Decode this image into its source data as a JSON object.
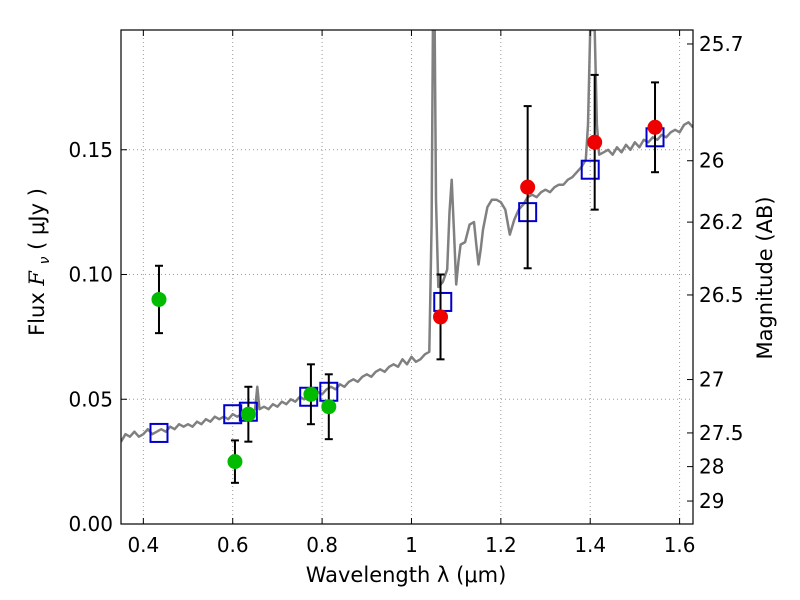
{
  "chart_data": {
    "type": "scatter",
    "xlabel": "Wavelength  λ (μm)",
    "ylabel": "Flux  F_ν  ( μJy )",
    "ylabel_parts": {
      "lead": "Flux  ",
      "symbol": "F",
      "sub": "ν",
      "unit": "  ( μJy )"
    },
    "y2label": "Magnitude (AB)",
    "xlim": [
      0.35,
      1.63
    ],
    "ylim": [
      0.0,
      0.198
    ],
    "grid": true,
    "x_ticks": [
      0.4,
      0.6,
      0.8,
      1.0,
      1.2,
      1.4,
      1.6
    ],
    "x_tick_labels": [
      "0.4",
      "0.6",
      "0.8",
      "1",
      "1.2",
      "1.4",
      "1.6"
    ],
    "y_ticks": [
      0.0,
      0.05,
      0.1,
      0.15
    ],
    "y_tick_labels": [
      "0.00",
      "0.05",
      "0.10",
      "0.15"
    ],
    "y2_ticks": [
      {
        "label": "25.7",
        "flux": 0.1924
      },
      {
        "label": "26",
        "flux": 0.1456
      },
      {
        "label": "26.2",
        "flux": 0.121
      },
      {
        "label": "26.5",
        "flux": 0.0918
      },
      {
        "label": "27",
        "flux": 0.0579
      },
      {
        "label": "27.5",
        "flux": 0.0365
      },
      {
        "label": "28",
        "flux": 0.023
      },
      {
        "label": "29",
        "flux": 0.0092
      }
    ],
    "colors": {
      "model": "#808080",
      "green_points": "#00bb00",
      "red_points": "#ee0000",
      "model_squares": "#0000cc",
      "errorbars": "#000000",
      "grid": "#999999"
    },
    "series": [
      {
        "kind": "line",
        "points": [
          [
            0.35,
            0.033
          ],
          [
            0.36,
            0.036
          ],
          [
            0.37,
            0.035
          ],
          [
            0.38,
            0.037
          ],
          [
            0.39,
            0.035
          ],
          [
            0.4,
            0.036
          ],
          [
            0.41,
            0.038
          ],
          [
            0.42,
            0.036
          ],
          [
            0.43,
            0.037
          ],
          [
            0.44,
            0.038
          ],
          [
            0.45,
            0.037
          ],
          [
            0.46,
            0.039
          ],
          [
            0.47,
            0.038
          ],
          [
            0.48,
            0.04
          ],
          [
            0.49,
            0.039
          ],
          [
            0.5,
            0.04
          ],
          [
            0.51,
            0.039
          ],
          [
            0.52,
            0.041
          ],
          [
            0.53,
            0.04
          ],
          [
            0.54,
            0.042
          ],
          [
            0.55,
            0.041
          ],
          [
            0.56,
            0.043
          ],
          [
            0.57,
            0.042
          ],
          [
            0.58,
            0.043
          ],
          [
            0.59,
            0.042
          ],
          [
            0.6,
            0.044
          ],
          [
            0.61,
            0.043
          ],
          [
            0.62,
            0.044
          ],
          [
            0.63,
            0.045
          ],
          [
            0.64,
            0.044
          ],
          [
            0.65,
            0.046
          ],
          [
            0.655,
            0.055
          ],
          [
            0.66,
            0.046
          ],
          [
            0.67,
            0.047
          ],
          [
            0.68,
            0.046
          ],
          [
            0.69,
            0.048
          ],
          [
            0.7,
            0.047
          ],
          [
            0.71,
            0.049
          ],
          [
            0.72,
            0.048
          ],
          [
            0.73,
            0.05
          ],
          [
            0.74,
            0.049
          ],
          [
            0.75,
            0.051
          ],
          [
            0.76,
            0.05
          ],
          [
            0.77,
            0.052
          ],
          [
            0.78,
            0.051
          ],
          [
            0.79,
            0.053
          ],
          [
            0.8,
            0.052
          ],
          [
            0.81,
            0.054
          ],
          [
            0.82,
            0.055
          ],
          [
            0.83,
            0.054
          ],
          [
            0.84,
            0.056
          ],
          [
            0.85,
            0.055
          ],
          [
            0.86,
            0.057
          ],
          [
            0.87,
            0.058
          ],
          [
            0.88,
            0.057
          ],
          [
            0.89,
            0.059
          ],
          [
            0.9,
            0.06
          ],
          [
            0.91,
            0.059
          ],
          [
            0.92,
            0.061
          ],
          [
            0.93,
            0.062
          ],
          [
            0.94,
            0.061
          ],
          [
            0.95,
            0.063
          ],
          [
            0.96,
            0.064
          ],
          [
            0.97,
            0.063
          ],
          [
            0.98,
            0.066
          ],
          [
            0.99,
            0.064
          ],
          [
            1.0,
            0.067
          ],
          [
            1.01,
            0.065
          ],
          [
            1.02,
            0.066
          ],
          [
            1.03,
            0.068
          ],
          [
            1.04,
            0.069
          ],
          [
            1.045,
            0.12
          ],
          [
            1.048,
            0.198
          ],
          [
            1.052,
            0.198
          ],
          [
            1.055,
            0.13
          ],
          [
            1.06,
            0.095
          ],
          [
            1.07,
            0.097
          ],
          [
            1.08,
            0.102
          ],
          [
            1.085,
            0.125
          ],
          [
            1.09,
            0.138
          ],
          [
            1.095,
            0.118
          ],
          [
            1.1,
            0.096
          ],
          [
            1.105,
            0.105
          ],
          [
            1.11,
            0.112
          ],
          [
            1.12,
            0.113
          ],
          [
            1.13,
            0.12
          ],
          [
            1.14,
            0.121
          ],
          [
            1.145,
            0.112
          ],
          [
            1.15,
            0.104
          ],
          [
            1.155,
            0.11
          ],
          [
            1.16,
            0.118
          ],
          [
            1.17,
            0.127
          ],
          [
            1.18,
            0.13
          ],
          [
            1.19,
            0.13
          ],
          [
            1.2,
            0.129
          ],
          [
            1.21,
            0.126
          ],
          [
            1.22,
            0.116
          ],
          [
            1.23,
            0.122
          ],
          [
            1.24,
            0.126
          ],
          [
            1.25,
            0.128
          ],
          [
            1.26,
            0.131
          ],
          [
            1.27,
            0.132
          ],
          [
            1.28,
            0.131
          ],
          [
            1.29,
            0.133
          ],
          [
            1.3,
            0.134
          ],
          [
            1.31,
            0.133
          ],
          [
            1.32,
            0.135
          ],
          [
            1.33,
            0.136
          ],
          [
            1.34,
            0.136
          ],
          [
            1.35,
            0.138
          ],
          [
            1.36,
            0.139
          ],
          [
            1.37,
            0.141
          ],
          [
            1.38,
            0.143
          ],
          [
            1.39,
            0.146
          ],
          [
            1.395,
            0.16
          ],
          [
            1.4,
            0.198
          ],
          [
            1.41,
            0.198
          ],
          [
            1.415,
            0.16
          ],
          [
            1.42,
            0.148
          ],
          [
            1.43,
            0.149
          ],
          [
            1.44,
            0.15
          ],
          [
            1.45,
            0.148
          ],
          [
            1.46,
            0.151
          ],
          [
            1.47,
            0.149
          ],
          [
            1.48,
            0.152
          ],
          [
            1.49,
            0.15
          ],
          [
            1.5,
            0.153
          ],
          [
            1.51,
            0.151
          ],
          [
            1.52,
            0.154
          ],
          [
            1.53,
            0.153
          ],
          [
            1.54,
            0.155
          ],
          [
            1.55,
            0.154
          ],
          [
            1.56,
            0.156
          ],
          [
            1.57,
            0.155
          ],
          [
            1.58,
            0.157
          ],
          [
            1.59,
            0.158
          ],
          [
            1.6,
            0.157
          ],
          [
            1.61,
            0.16
          ],
          [
            1.62,
            0.161
          ],
          [
            1.63,
            0.159
          ]
        ]
      },
      {
        "kind": "points-with-errors",
        "color_key": "green_points",
        "points": [
          {
            "x": 0.435,
            "y": 0.09,
            "err": 0.0135
          },
          {
            "x": 0.605,
            "y": 0.025,
            "err": 0.0085
          },
          {
            "x": 0.635,
            "y": 0.044,
            "err": 0.011
          },
          {
            "x": 0.775,
            "y": 0.052,
            "err": 0.012
          },
          {
            "x": 0.815,
            "y": 0.047,
            "err": 0.013
          }
        ]
      },
      {
        "kind": "points-with-errors",
        "color_key": "red_points",
        "points": [
          {
            "x": 1.065,
            "y": 0.083,
            "err": 0.017
          },
          {
            "x": 1.26,
            "y": 0.135,
            "err": 0.0325
          },
          {
            "x": 1.41,
            "y": 0.153,
            "err": 0.027
          },
          {
            "x": 1.545,
            "y": 0.159,
            "err": 0.018
          }
        ]
      },
      {
        "kind": "squares",
        "color_key": "model_squares",
        "points": [
          {
            "x": 0.435,
            "y": 0.0365
          },
          {
            "x": 0.6,
            "y": 0.044
          },
          {
            "x": 0.635,
            "y": 0.045
          },
          {
            "x": 0.77,
            "y": 0.051
          },
          {
            "x": 0.815,
            "y": 0.053
          },
          {
            "x": 1.07,
            "y": 0.089
          },
          {
            "x": 1.26,
            "y": 0.125
          },
          {
            "x": 1.4,
            "y": 0.142
          },
          {
            "x": 1.545,
            "y": 0.155
          }
        ]
      }
    ]
  }
}
